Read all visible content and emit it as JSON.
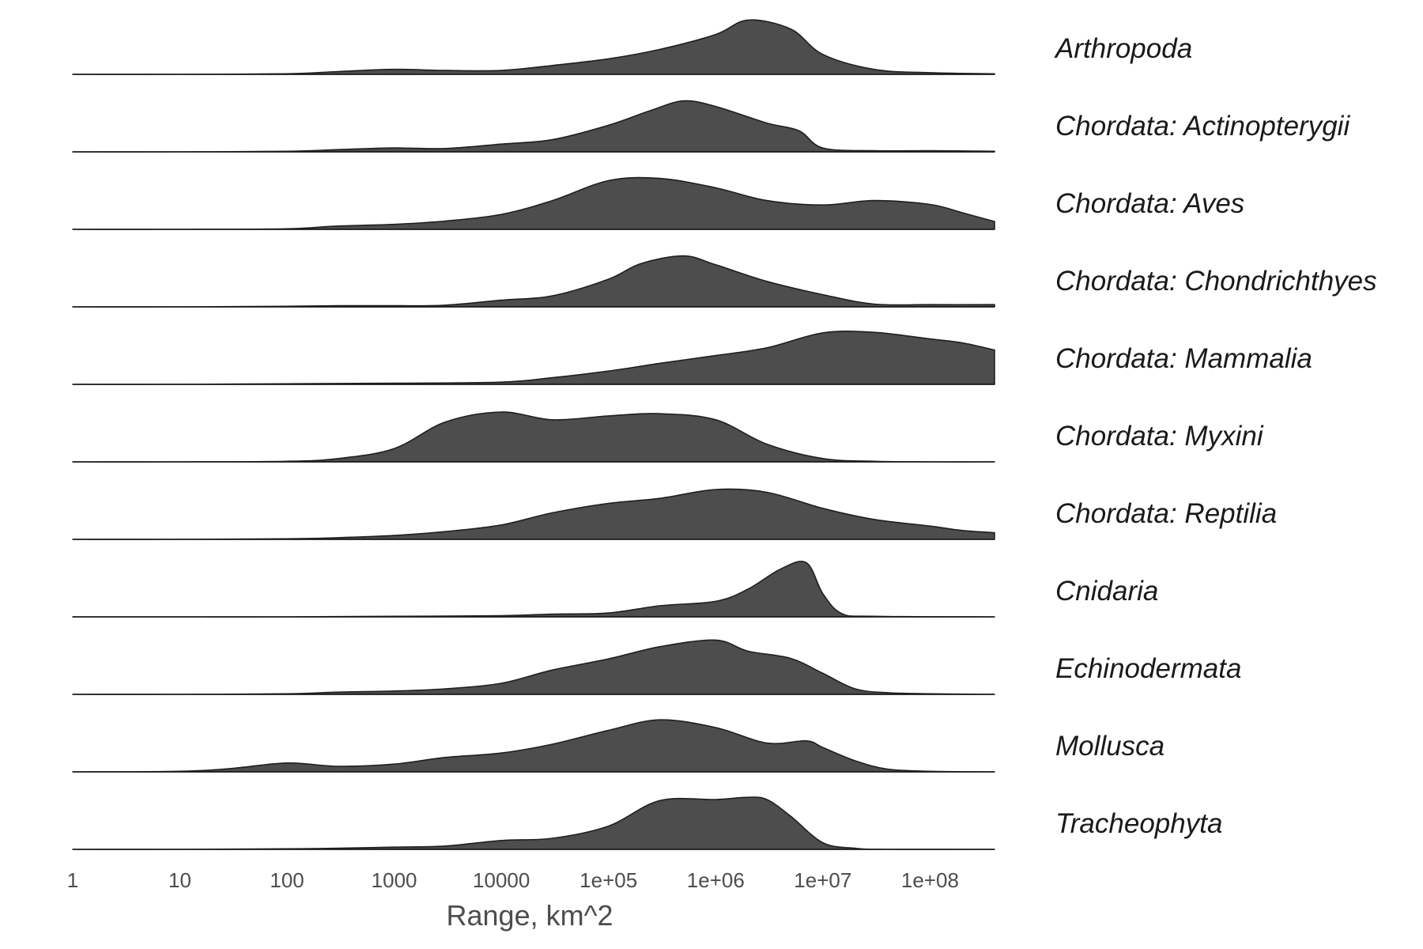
{
  "chart_data": {
    "type": "area",
    "subtype": "ridgeline-density",
    "xlabel": "Range, km^2",
    "x_scale": "log10",
    "xlim": [
      1,
      400000000
    ],
    "x_ticks": [
      {
        "value": 1,
        "label": "1"
      },
      {
        "value": 10,
        "label": "10"
      },
      {
        "value": 100,
        "label": "100"
      },
      {
        "value": 1000,
        "label": "1000"
      },
      {
        "value": 10000,
        "label": "10000"
      },
      {
        "value": 100000,
        "label": "1e+05"
      },
      {
        "value": 1000000,
        "label": "1e+06"
      },
      {
        "value": 10000000,
        "label": "1e+07"
      },
      {
        "value": 100000000,
        "label": "1e+08"
      }
    ],
    "grid": false,
    "fill_color": "#4d4d4d",
    "series": [
      {
        "name": "Arthropoda",
        "points": [
          [
            1,
            0
          ],
          [
            10,
            0
          ],
          [
            100,
            0.01
          ],
          [
            300,
            0.05
          ],
          [
            1000,
            0.09
          ],
          [
            3000,
            0.07
          ],
          [
            10000,
            0.07
          ],
          [
            30000,
            0.16
          ],
          [
            100000,
            0.28
          ],
          [
            300000,
            0.45
          ],
          [
            1000000,
            0.72
          ],
          [
            2000000,
            0.98
          ],
          [
            5000000,
            0.82
          ],
          [
            10000000,
            0.36
          ],
          [
            30000000,
            0.09
          ],
          [
            100000000,
            0.03
          ],
          [
            400000000,
            0.01
          ]
        ]
      },
      {
        "name": "Chordata: Actinopterygii",
        "points": [
          [
            1,
            0
          ],
          [
            10,
            0
          ],
          [
            100,
            0.01
          ],
          [
            300,
            0.04
          ],
          [
            1000,
            0.07
          ],
          [
            3000,
            0.06
          ],
          [
            10000,
            0.14
          ],
          [
            30000,
            0.22
          ],
          [
            100000,
            0.48
          ],
          [
            250000,
            0.75
          ],
          [
            500000,
            0.92
          ],
          [
            1000000,
            0.82
          ],
          [
            3000000,
            0.52
          ],
          [
            6000000,
            0.38
          ],
          [
            10000000,
            0.07
          ],
          [
            30000000,
            0.02
          ],
          [
            100000000,
            0.02
          ],
          [
            400000000,
            0.01
          ]
        ]
      },
      {
        "name": "Chordata: Aves",
        "points": [
          [
            1,
            0
          ],
          [
            10,
            0
          ],
          [
            100,
            0.01
          ],
          [
            300,
            0.06
          ],
          [
            1000,
            0.09
          ],
          [
            3000,
            0.15
          ],
          [
            10000,
            0.27
          ],
          [
            30000,
            0.52
          ],
          [
            100000,
            0.88
          ],
          [
            300000,
            0.92
          ],
          [
            1000000,
            0.75
          ],
          [
            3000000,
            0.52
          ],
          [
            10000000,
            0.44
          ],
          [
            30000000,
            0.52
          ],
          [
            100000000,
            0.45
          ],
          [
            200000000,
            0.3
          ],
          [
            400000000,
            0.14
          ]
        ]
      },
      {
        "name": "Chordata: Chondrichthyes",
        "points": [
          [
            1,
            0
          ],
          [
            10,
            0
          ],
          [
            100,
            0.01
          ],
          [
            300,
            0.02
          ],
          [
            1000,
            0.02
          ],
          [
            3000,
            0.03
          ],
          [
            10000,
            0.12
          ],
          [
            30000,
            0.2
          ],
          [
            100000,
            0.5
          ],
          [
            200000,
            0.78
          ],
          [
            500000,
            0.92
          ],
          [
            1000000,
            0.76
          ],
          [
            3000000,
            0.46
          ],
          [
            10000000,
            0.22
          ],
          [
            30000000,
            0.05
          ],
          [
            100000000,
            0.04
          ],
          [
            400000000,
            0.04
          ]
        ]
      },
      {
        "name": "Chordata: Mammalia",
        "points": [
          [
            1,
            0
          ],
          [
            10,
            0
          ],
          [
            100,
            0.01
          ],
          [
            1000,
            0.02
          ],
          [
            10000,
            0.04
          ],
          [
            30000,
            0.12
          ],
          [
            100000,
            0.24
          ],
          [
            300000,
            0.38
          ],
          [
            1000000,
            0.52
          ],
          [
            3000000,
            0.66
          ],
          [
            10000000,
            0.93
          ],
          [
            30000000,
            0.94
          ],
          [
            100000000,
            0.82
          ],
          [
            200000000,
            0.75
          ],
          [
            400000000,
            0.62
          ]
        ]
      },
      {
        "name": "Chordata: Myxini",
        "points": [
          [
            1,
            0
          ],
          [
            10,
            0
          ],
          [
            100,
            0.01
          ],
          [
            300,
            0.06
          ],
          [
            1000,
            0.24
          ],
          [
            3000,
            0.72
          ],
          [
            10000,
            0.9
          ],
          [
            30000,
            0.76
          ],
          [
            100000,
            0.83
          ],
          [
            300000,
            0.87
          ],
          [
            1000000,
            0.76
          ],
          [
            3000000,
            0.32
          ],
          [
            10000000,
            0.06
          ],
          [
            30000000,
            0.01
          ],
          [
            100000000,
            0
          ],
          [
            400000000,
            0
          ]
        ]
      },
      {
        "name": "Chordata: Reptilia",
        "points": [
          [
            1,
            0
          ],
          [
            10,
            0
          ],
          [
            100,
            0.01
          ],
          [
            300,
            0.03
          ],
          [
            1000,
            0.07
          ],
          [
            3000,
            0.14
          ],
          [
            10000,
            0.26
          ],
          [
            30000,
            0.48
          ],
          [
            100000,
            0.65
          ],
          [
            300000,
            0.74
          ],
          [
            1000000,
            0.9
          ],
          [
            3000000,
            0.85
          ],
          [
            10000000,
            0.56
          ],
          [
            30000000,
            0.36
          ],
          [
            100000000,
            0.24
          ],
          [
            200000000,
            0.16
          ],
          [
            400000000,
            0.12
          ]
        ]
      },
      {
        "name": "Cnidaria",
        "points": [
          [
            1,
            0
          ],
          [
            10,
            0
          ],
          [
            100,
            0
          ],
          [
            1000,
            0.01
          ],
          [
            10000,
            0.02
          ],
          [
            30000,
            0.05
          ],
          [
            100000,
            0.07
          ],
          [
            300000,
            0.2
          ],
          [
            1000000,
            0.28
          ],
          [
            2000000,
            0.5
          ],
          [
            4000000,
            0.86
          ],
          [
            7000000,
            0.98
          ],
          [
            10000000,
            0.42
          ],
          [
            15000000,
            0.06
          ],
          [
            30000000,
            0.01
          ],
          [
            400000000,
            0
          ]
        ]
      },
      {
        "name": "Echinodermata",
        "points": [
          [
            1,
            0
          ],
          [
            10,
            0
          ],
          [
            100,
            0.01
          ],
          [
            300,
            0.04
          ],
          [
            1000,
            0.06
          ],
          [
            3000,
            0.1
          ],
          [
            10000,
            0.2
          ],
          [
            30000,
            0.44
          ],
          [
            100000,
            0.64
          ],
          [
            300000,
            0.86
          ],
          [
            1000000,
            0.98
          ],
          [
            2000000,
            0.78
          ],
          [
            5000000,
            0.65
          ],
          [
            10000000,
            0.38
          ],
          [
            20000000,
            0.1
          ],
          [
            40000000,
            0.03
          ],
          [
            100000000,
            0.01
          ],
          [
            400000000,
            0
          ]
        ]
      },
      {
        "name": "Mollusca",
        "points": [
          [
            1,
            0
          ],
          [
            10,
            0.01
          ],
          [
            30,
            0.06
          ],
          [
            100,
            0.16
          ],
          [
            300,
            0.1
          ],
          [
            1000,
            0.14
          ],
          [
            3000,
            0.26
          ],
          [
            10000,
            0.34
          ],
          [
            30000,
            0.5
          ],
          [
            100000,
            0.75
          ],
          [
            300000,
            0.94
          ],
          [
            1000000,
            0.8
          ],
          [
            3000000,
            0.52
          ],
          [
            7000000,
            0.56
          ],
          [
            10000000,
            0.44
          ],
          [
            20000000,
            0.2
          ],
          [
            40000000,
            0.05
          ],
          [
            100000000,
            0.01
          ],
          [
            400000000,
            0
          ]
        ]
      },
      {
        "name": "Tracheophyta",
        "points": [
          [
            1,
            0
          ],
          [
            10,
            0
          ],
          [
            100,
            0.01
          ],
          [
            300,
            0.02
          ],
          [
            1000,
            0.04
          ],
          [
            3000,
            0.06
          ],
          [
            10000,
            0.16
          ],
          [
            30000,
            0.2
          ],
          [
            100000,
            0.42
          ],
          [
            300000,
            0.88
          ],
          [
            1000000,
            0.9
          ],
          [
            2000000,
            0.94
          ],
          [
            3000000,
            0.9
          ],
          [
            5000000,
            0.6
          ],
          [
            10000000,
            0.12
          ],
          [
            20000000,
            0.02
          ],
          [
            40000000,
            0
          ],
          [
            400000000,
            0
          ]
        ]
      }
    ]
  }
}
